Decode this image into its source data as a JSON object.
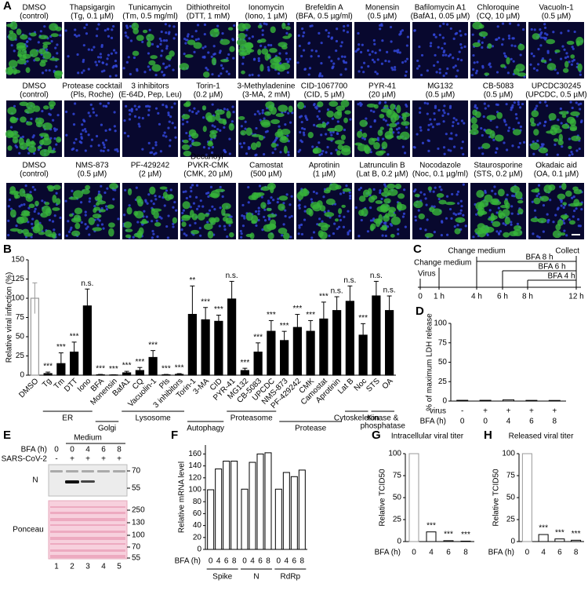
{
  "panel_labels": [
    "A",
    "B",
    "C",
    "D",
    "E",
    "F",
    "G",
    "H"
  ],
  "figure_a": {
    "rows": [
      [
        [
          "DMSO",
          "(control)"
        ],
        [
          "Thapsigargin",
          "(Tg, 0.1 µM)"
        ],
        [
          "Tunicamycin",
          "(Tm, 0.5 mg/ml)"
        ],
        [
          "Dithiothreitol",
          "(DTT, 1 mM)"
        ],
        [
          "Ionomycin",
          "(Iono, 1 µM)"
        ],
        [
          "Brefeldin A",
          "(BFA, 0.5 µg/ml)"
        ],
        [
          "Monensin",
          "(0.5 µM)"
        ],
        [
          "Bafilomycin A1",
          "(BafA1, 0.05 µM)"
        ],
        [
          "Chloroquine",
          "(CQ, 10 µM)"
        ],
        [
          "Vacuoln-1",
          "(0.5 µM)"
        ]
      ],
      [
        [
          "DMSO",
          "(control)"
        ],
        [
          "Protease cocktail",
          "(Pls, Roche)"
        ],
        [
          "3 inhibitors",
          "(E-64D, Pep, Leu)"
        ],
        [
          "Torin-1",
          "(0.2 µM)"
        ],
        [
          "3-Methyladenine",
          "(3-MA, 2 mM)"
        ],
        [
          "CID-1067700",
          "(CID, 5 µM)"
        ],
        [
          "PYR-41",
          "(20 µM)"
        ],
        [
          "MG132",
          "(0.5 µM)"
        ],
        [
          "CB-5083",
          "(0.5 µM)"
        ],
        [
          "UPCDC30245",
          "(UPCDC, 0.5 µM)"
        ]
      ],
      [
        [
          "DMSO",
          "(control)"
        ],
        [
          "NMS-873",
          "(0.5 µM)"
        ],
        [
          "PF-429242",
          "(2 µM)"
        ],
        [
          "Decanoyl-",
          "PVKR-CMK",
          "(CMK, 20 µM)"
        ],
        [
          "Camostat",
          "(500 µM)"
        ],
        [
          "Aprotinin",
          "(1 µM)"
        ],
        [
          "Latrunculin B",
          "(Lat B, 0.2 µM)"
        ],
        [
          "Nocodazole",
          "(Noc, 0.1 µg/ml)"
        ],
        [
          "Staurosporine",
          "(STS, 0.2 µM)"
        ],
        [
          "Okadaic aid",
          "(OA, 0.1 µM)"
        ]
      ]
    ]
  },
  "figure_c": {
    "change_medium_top": "Change medium",
    "change_medium": "Change medium",
    "virus": "Virus",
    "bfa": [
      "BFA 8 h",
      "BFA 6 h",
      "BFA 4 h"
    ],
    "collect": "Collect",
    "times": [
      "0",
      "1 h",
      "4 h",
      "6 h",
      "8 h",
      "12 h"
    ]
  },
  "figure_e": {
    "medium": "Medium",
    "bfa_label": "BFA (h)",
    "bfa": [
      "0",
      "0",
      "4",
      "6",
      "8"
    ],
    "virus_label": "SARS-CoV-2",
    "virus": [
      "-",
      "+",
      "+",
      "+",
      "+"
    ],
    "n_label": "N",
    "ponceau_label": "Ponceau",
    "n_markers": [
      "70",
      "55"
    ],
    "ponceau_markers": [
      "250",
      "130",
      "100",
      "70",
      "55"
    ],
    "lanes": [
      "1",
      "2",
      "3",
      "4",
      "5"
    ]
  },
  "chart_data": [
    {
      "type": "bar",
      "ylabel": "Relative viral infection (%)",
      "categories": [
        "DMSO",
        "Tg",
        "Tm",
        "DTT",
        "Iono",
        "BFA",
        "Monensin",
        "BafA1",
        "CQ",
        "Vacuolin-1",
        "Pls",
        "3 inhibitors",
        "Torin-1",
        "3-MA",
        "CID",
        "PYR-41",
        "MG132",
        "CB-5083",
        "UPCDC",
        "NMS-873",
        "PF-429242",
        "CMK",
        "Camostat",
        "Aprotinin",
        "Lat B",
        "Noc",
        "STS",
        "OA"
      ],
      "values": [
        100,
        2,
        15,
        30,
        90,
        0.5,
        0.3,
        3,
        6,
        23,
        0.5,
        1,
        79,
        72,
        70,
        99,
        6,
        30,
        57,
        45,
        62,
        57,
        73,
        84,
        96,
        52,
        103,
        84
      ],
      "errors": [
        20,
        2,
        14,
        13,
        22,
        0.5,
        0.3,
        2,
        4,
        9,
        0.5,
        1,
        37,
        16,
        8,
        23,
        3,
        12,
        14,
        12,
        17,
        14,
        22,
        18,
        20,
        15,
        19,
        19
      ],
      "significance": [
        null,
        "***",
        "***",
        "***",
        "n.s.",
        "***",
        "***",
        "***",
        "***",
        "***",
        "***",
        "***",
        "**",
        "***",
        "***",
        "n.s.",
        "***",
        "***",
        "***",
        "***",
        "***",
        "***",
        "***",
        "n.s.",
        "n.s.",
        "***",
        "n.s.",
        "n.s."
      ],
      "groups": [
        [
          "ER"
        ],
        [
          "Golgi"
        ],
        [
          "Lysosome"
        ],
        [
          "Autophagy"
        ],
        [
          "Proteasome"
        ],
        [
          "Protease"
        ],
        [
          "Cytoskeleton"
        ],
        [
          "Kinase &",
          "phosphatase"
        ]
      ],
      "color": "#000000",
      "control_color": "#999999",
      "ylim": [
        0,
        150
      ],
      "yticks": [
        0,
        25,
        50,
        75,
        100,
        125,
        150
      ]
    },
    {
      "type": "bar",
      "ylabel": "% of maximum LDH release",
      "row_labels": [
        "virus",
        "BFA (h)"
      ],
      "virus": [
        "-",
        "+",
        "+",
        "+",
        "+"
      ],
      "categories": [
        "0",
        "0",
        "4",
        "6",
        "8"
      ],
      "values": [
        1,
        1,
        1.6,
        0.9,
        0.8
      ],
      "color": "#ffffff",
      "ylim": [
        0,
        100
      ],
      "yticks": [
        0,
        25,
        50,
        75,
        100
      ]
    },
    {
      "type": "grouped_bar",
      "ylabel": "Relative mRNA level",
      "x_label": "BFA (h)",
      "categories": [
        "Spike",
        "N",
        "RdRp"
      ],
      "series": [
        {
          "name": "0",
          "values": [
            100,
            101,
            101
          ]
        },
        {
          "name": "4",
          "values": [
            135,
            146,
            129
          ]
        },
        {
          "name": "6",
          "values": [
            148,
            160,
            122
          ]
        },
        {
          "name": "8",
          "values": [
            148,
            162,
            133
          ]
        }
      ],
      "color": "#ffffff",
      "ylim": [
        0,
        175
      ],
      "yticks": [
        0,
        20,
        40,
        60,
        80,
        100,
        120,
        140,
        160
      ]
    },
    {
      "type": "bar",
      "title": "Intracellular viral titer",
      "ylabel": "Relative TCID50",
      "x_label": "BFA (h)",
      "categories": [
        "0",
        "4",
        "6",
        "8"
      ],
      "values": [
        100,
        11,
        1,
        0.5
      ],
      "significance": [
        null,
        "***",
        "***",
        "***"
      ],
      "color": "#ffffff",
      "ylim": [
        0,
        100
      ],
      "yticks": [
        0,
        25,
        50,
        75,
        100
      ]
    },
    {
      "type": "bar",
      "title": "Released viral titer",
      "ylabel": "Relative TCID50",
      "x_label": "BFA (h)",
      "categories": [
        "0",
        "4",
        "6",
        "8"
      ],
      "values": [
        100,
        8,
        3,
        1.5
      ],
      "significance": [
        null,
        "***",
        "***",
        "***"
      ],
      "color": "#ffffff",
      "ylim": [
        0,
        100
      ],
      "yticks": [
        0,
        25,
        50,
        75,
        100
      ]
    }
  ]
}
